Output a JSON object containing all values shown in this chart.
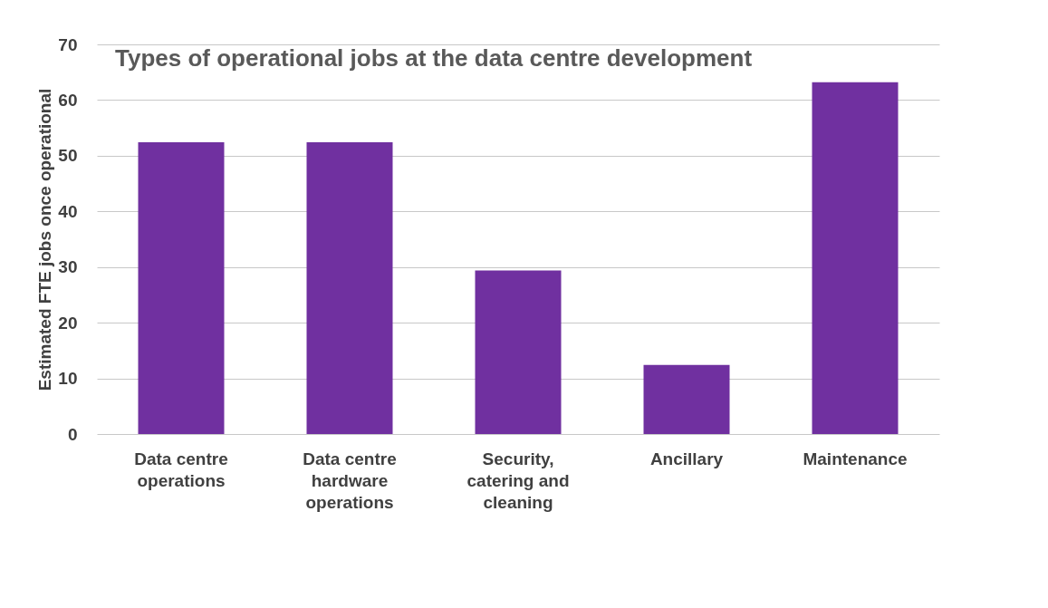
{
  "chart_data": {
    "type": "bar",
    "title": "Types of operational jobs at the data centre development",
    "ylabel": "Estimated FTE jobs once operational",
    "categories": [
      "Data centre\noperations",
      "Data centre\nhardware\noperations",
      "Security,\ncatering and\ncleaning",
      "Ancillary",
      "Maintenance"
    ],
    "values": [
      52.4,
      52.4,
      29.4,
      12.4,
      63.2
    ],
    "color": "#7030a0",
    "ylim": [
      0,
      70
    ],
    "yticks": [
      0,
      10,
      20,
      30,
      40,
      50,
      60,
      70
    ],
    "grid": "y"
  }
}
